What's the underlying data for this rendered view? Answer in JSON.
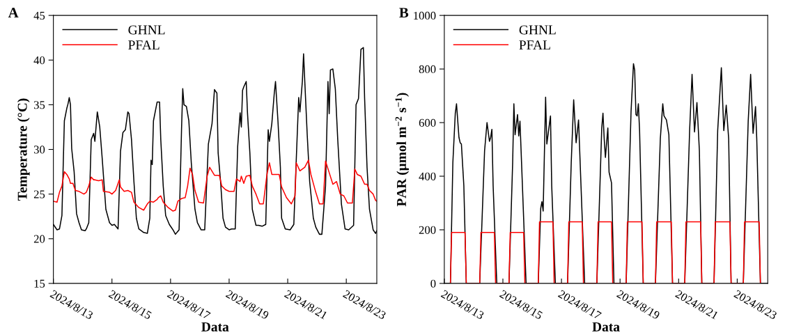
{
  "chart_data": [
    {
      "type": "line",
      "title": "A",
      "xlabel": "Data",
      "ylabel": "Temperature (°C)",
      "legend": "top left",
      "xlim": [
        "2024-08-13T00:00",
        "2024-08-24T01:00"
      ],
      "xticks": [
        {
          "value": "2024-08-13",
          "label": "2024/8/13"
        },
        {
          "value": "2024-08-15",
          "label": "2024/8/15"
        },
        {
          "value": "2024-08-17",
          "label": "2024/8/17"
        },
        {
          "value": "2024-08-19",
          "label": "2024/8/19"
        },
        {
          "value": "2024-08-21",
          "label": "2024/8/21"
        },
        {
          "value": "2024-08-23",
          "label": "2024/8/23"
        }
      ],
      "ylim": [
        15,
        45
      ],
      "yticks": [
        15,
        20,
        25,
        30,
        35,
        40,
        45
      ],
      "series": [
        {
          "name": "GHNL",
          "color": "#000000",
          "x": [
            "2024-08-13T00:00",
            "2024-08-13T03:00",
            "2024-08-13T05:00",
            "2024-08-13T07:00",
            "2024-08-13T09:00",
            "2024-08-13T11:00",
            "2024-08-13T12:00",
            "2024-08-13T13:00",
            "2024-08-13T14:00",
            "2024-08-13T15:00",
            "2024-08-13T17:00",
            "2024-08-13T19:00",
            "2024-08-13T21:00",
            "2024-08-13T23:00",
            "2024-08-14T02:00",
            "2024-08-14T03:00",
            "2024-08-14T05:00",
            "2024-08-14T07:00",
            "2024-08-14T09:00",
            "2024-08-14T10:00",
            "2024-08-14T12:00",
            "2024-08-14T14:00",
            "2024-08-14T16:00",
            "2024-08-14T19:00",
            "2024-08-14T22:00",
            "2024-08-15T00:00",
            "2024-08-15T02:00",
            "2024-08-15T05:00",
            "2024-08-15T07:00",
            "2024-08-15T09:00",
            "2024-08-15T11:00",
            "2024-08-15T13:00",
            "2024-08-15T14:00",
            "2024-08-15T16:00",
            "2024-08-15T18:00",
            "2024-08-15T20:00",
            "2024-08-15T22:00",
            "2024-08-16T02:00",
            "2024-08-16T05:00",
            "2024-08-16T07:00",
            "2024-08-16T08:00",
            "2024-08-16T09:00",
            "2024-08-16T10:00",
            "2024-08-16T13:00",
            "2024-08-16T15:00",
            "2024-08-16T16:00",
            "2024-08-16T18:00",
            "2024-08-16T20:00",
            "2024-08-16T23:00",
            "2024-08-17T02:00",
            "2024-08-17T04:00",
            "2024-08-17T07:00",
            "2024-08-17T09:00",
            "2024-08-17T10:00",
            "2024-08-17T11:00",
            "2024-08-17T13:00",
            "2024-08-17T15:00",
            "2024-08-17T17:00",
            "2024-08-17T20:00",
            "2024-08-17T22:00",
            "2024-08-18T01:00",
            "2024-08-18T04:00",
            "2024-08-18T07:00",
            "2024-08-18T10:00",
            "2024-08-18T12:00",
            "2024-08-18T14:00",
            "2024-08-18T15:00",
            "2024-08-18T17:00",
            "2024-08-18T19:00",
            "2024-08-18T21:00",
            "2024-08-19T00:00",
            "2024-08-19T02:00",
            "2024-08-19T05:00",
            "2024-08-19T07:00",
            "2024-08-19T09:00",
            "2024-08-19T10:00",
            "2024-08-19T11:00",
            "2024-08-19T12:00",
            "2024-08-19T14:00",
            "2024-08-19T15:00",
            "2024-08-19T17:00",
            "2024-08-19T19:00",
            "2024-08-19T22:00",
            "2024-08-20T00:00",
            "2024-08-20T03:00",
            "2024-08-20T06:00",
            "2024-08-20T08:00",
            "2024-08-20T09:00",
            "2024-08-20T11:00",
            "2024-08-20T13:00",
            "2024-08-20T14:00",
            "2024-08-20T16:00",
            "2024-08-20T18:00",
            "2024-08-20T19:00",
            "2024-08-20T22:00",
            "2024-08-21T02:00",
            "2024-08-21T05:00",
            "2024-08-21T07:00",
            "2024-08-21T09:00",
            "2024-08-21T10:00",
            "2024-08-21T12:00",
            "2024-08-21T13:00",
            "2024-08-21T14:00",
            "2024-08-21T16:00",
            "2024-08-21T18:00",
            "2024-08-21T21:00",
            "2024-08-21T23:00",
            "2024-08-22T02:00",
            "2024-08-22T04:00",
            "2024-08-22T07:00",
            "2024-08-22T09:00",
            "2024-08-22T10:00",
            "2024-08-22T11:00",
            "2024-08-22T13:00",
            "2024-08-22T15:00",
            "2024-08-22T17:00",
            "2024-08-22T20:00",
            "2024-08-22T23:00",
            "2024-08-23T02:00",
            "2024-08-23T06:00",
            "2024-08-23T08:00",
            "2024-08-23T10:00",
            "2024-08-23T12:00",
            "2024-08-23T14:00",
            "2024-08-23T15:00",
            "2024-08-23T17:00",
            "2024-08-23T19:00",
            "2024-08-23T22:00",
            "2024-08-24T00:00",
            "2024-08-24T01:00"
          ],
          "values": [
            21.6,
            21.0,
            21.1,
            22.6,
            33.2,
            34.6,
            35.1,
            35.8,
            35.0,
            30.1,
            27.5,
            22.8,
            21.8,
            21.0,
            20.9,
            21.1,
            21.8,
            31.1,
            31.8,
            30.9,
            34.2,
            32.5,
            29.0,
            23.3,
            21.8,
            21.5,
            21.6,
            21.1,
            29.8,
            31.9,
            32.2,
            34.2,
            34.0,
            31.1,
            26.4,
            22.3,
            21.1,
            20.7,
            20.6,
            22.3,
            28.8,
            28.3,
            33.2,
            35.3,
            35.3,
            31.1,
            25.9,
            22.6,
            21.6,
            21.0,
            20.5,
            21.0,
            32.2,
            36.8,
            35.0,
            34.8,
            33.2,
            28.5,
            23.3,
            21.8,
            21.0,
            21.0,
            30.6,
            32.9,
            36.7,
            36.3,
            29.6,
            26.4,
            22.3,
            21.3,
            21.0,
            21.1,
            21.1,
            30.3,
            34.1,
            32.5,
            36.6,
            37.0,
            37.6,
            34.2,
            29.6,
            23.3,
            21.5,
            21.5,
            21.4,
            21.6,
            32.2,
            30.9,
            32.9,
            36.3,
            37.6,
            33.2,
            28.0,
            22.3,
            21.1,
            21.0,
            21.6,
            28.8,
            35.8,
            34.2,
            37.6,
            40.7,
            37.6,
            31.6,
            26.4,
            22.3,
            21.3,
            20.5,
            20.5,
            25.9,
            37.6,
            34.0,
            38.9,
            39.0,
            36.8,
            31.1,
            23.9,
            21.1,
            21.0,
            21.5,
            35.0,
            35.7,
            41.2,
            41.4,
            35.8,
            28.0,
            23.3,
            21.0,
            20.6,
            20.9
          ]
        },
        {
          "name": "PFAL",
          "color": "#ff0000",
          "x": [
            "2024-08-13T00:00",
            "2024-08-13T03:00",
            "2024-08-13T05:00",
            "2024-08-13T07:00",
            "2024-08-13T09:00",
            "2024-08-13T11:00",
            "2024-08-13T13:00",
            "2024-08-13T14:00",
            "2024-08-13T16:00",
            "2024-08-13T18:00",
            "2024-08-13T21:00",
            "2024-08-14T01:00",
            "2024-08-14T03:00",
            "2024-08-14T05:00",
            "2024-08-14T07:00",
            "2024-08-14T09:00",
            "2024-08-14T10:00",
            "2024-08-14T13:00",
            "2024-08-14T16:00",
            "2024-08-14T17:00",
            "2024-08-14T22:00",
            "2024-08-15T00:00",
            "2024-08-15T03:00",
            "2024-08-15T06:00",
            "2024-08-15T07:00",
            "2024-08-15T10:00",
            "2024-08-15T13:00",
            "2024-08-15T16:00",
            "2024-08-15T18:00",
            "2024-08-15T22:00",
            "2024-08-16T02:00",
            "2024-08-16T05:00",
            "2024-08-16T07:00",
            "2024-08-16T10:00",
            "2024-08-16T13:00",
            "2024-08-16T14:00",
            "2024-08-16T16:00",
            "2024-08-16T18:00",
            "2024-08-16T22:00",
            "2024-08-17T02:00",
            "2024-08-17T04:00",
            "2024-08-17T06:00",
            "2024-08-17T09:00",
            "2024-08-17T12:00",
            "2024-08-17T14:00",
            "2024-08-17T16:00",
            "2024-08-17T18:00",
            "2024-08-17T20:00",
            "2024-08-17T23:00",
            "2024-08-18T03:00",
            "2024-08-18T06:00",
            "2024-08-18T08:00",
            "2024-08-18T12:00",
            "2024-08-18T16:00",
            "2024-08-18T18:00",
            "2024-08-18T21:00",
            "2024-08-19T00:00",
            "2024-08-19T04:00",
            "2024-08-19T06:00",
            "2024-08-19T09:00",
            "2024-08-19T10:00",
            "2024-08-19T12:00",
            "2024-08-19T14:00",
            "2024-08-19T17:00",
            "2024-08-19T19:00",
            "2024-08-19T22:00",
            "2024-08-20T01:00",
            "2024-08-20T04:00",
            "2024-08-20T07:00",
            "2024-08-20T09:00",
            "2024-08-20T11:00",
            "2024-08-20T17:00",
            "2024-08-20T19:00",
            "2024-08-20T23:00",
            "2024-08-21T03:00",
            "2024-08-21T06:00",
            "2024-08-21T07:00",
            "2024-08-21T10:00",
            "2024-08-21T14:00",
            "2024-08-21T17:00",
            "2024-08-21T19:00",
            "2024-08-21T23:00",
            "2024-08-22T02:00",
            "2024-08-22T05:00",
            "2024-08-22T07:00",
            "2024-08-22T10:00",
            "2024-08-22T13:00",
            "2024-08-22T16:00",
            "2024-08-22T19:00",
            "2024-08-22T22:00",
            "2024-08-23T01:00",
            "2024-08-23T05:00",
            "2024-08-23T07:00",
            "2024-08-23T09:00",
            "2024-08-23T12:00",
            "2024-08-23T15:00",
            "2024-08-23T17:00",
            "2024-08-23T19:00",
            "2024-08-23T22:00",
            "2024-08-24T00:00",
            "2024-08-24T01:00"
          ],
          "values": [
            24.2,
            24.1,
            25.2,
            25.9,
            27.5,
            27.2,
            26.7,
            26.2,
            26.2,
            25.4,
            25.3,
            25.0,
            25.2,
            25.9,
            26.9,
            26.6,
            26.6,
            26.5,
            26.6,
            25.3,
            25.2,
            25.0,
            25.4,
            26.6,
            25.8,
            25.3,
            25.4,
            25.2,
            24.1,
            23.5,
            23.2,
            23.9,
            24.2,
            24.1,
            24.4,
            24.6,
            24.8,
            24.1,
            23.5,
            23.1,
            23.2,
            24.2,
            24.5,
            24.6,
            25.9,
            27.9,
            27.2,
            25.4,
            24.1,
            24.0,
            27.0,
            28.0,
            27.1,
            27.1,
            25.9,
            25.5,
            25.3,
            25.3,
            26.7,
            26.4,
            27.0,
            26.2,
            27.0,
            27.1,
            25.9,
            25.0,
            23.9,
            23.9,
            27.2,
            28.5,
            27.2,
            27.2,
            25.8,
            24.6,
            23.9,
            24.8,
            28.5,
            27.6,
            28.0,
            28.8,
            27.2,
            25.2,
            23.9,
            23.9,
            28.7,
            27.4,
            26.1,
            26.4,
            25.0,
            24.8,
            24.0,
            24.0,
            27.8,
            27.2,
            27.0,
            26.1,
            26.1,
            25.4,
            25.0,
            24.3,
            24.2
          ]
        }
      ]
    },
    {
      "type": "line",
      "title": "B",
      "xlabel": "Data",
      "ylabel": "PAR (μmol m$^{−2}$ s$^{−1}$)",
      "legend": "top left",
      "xlim": [
        "2024-08-13T00:00",
        "2024-08-24T01:00"
      ],
      "xticks": [
        {
          "value": "2024-08-13",
          "label": "2024/8/13"
        },
        {
          "value": "2024-08-15",
          "label": "2024/8/15"
        },
        {
          "value": "2024-08-17",
          "label": "2024/8/17"
        },
        {
          "value": "2024-08-19",
          "label": "2024/8/19"
        },
        {
          "value": "2024-08-21",
          "label": "2024/8/21"
        },
        {
          "value": "2024-08-23",
          "label": "2024/8/23"
        }
      ],
      "ylim": [
        0,
        1000
      ],
      "yticks": [
        0,
        200,
        400,
        600,
        800,
        1000
      ],
      "series": [
        {
          "name": "GHNL",
          "color": "#000000",
          "x": [
            "2024-08-13T00:00",
            "2024-08-13T05:00",
            "2024-08-13T07:00",
            "2024-08-13T09:00",
            "2024-08-13T10:00",
            "2024-08-13T12:00",
            "2024-08-13T13:00",
            "2024-08-13T14:00",
            "2024-08-13T16:00",
            "2024-08-13T18:00",
            "2024-08-14T05:00",
            "2024-08-14T09:00",
            "2024-08-14T11:00",
            "2024-08-14T13:00",
            "2024-08-14T14:00",
            "2024-08-14T15:00",
            "2024-08-14T16:00",
            "2024-08-14T19:00",
            "2024-08-15T05:00",
            "2024-08-15T08:00",
            "2024-08-15T09:00",
            "2024-08-15T10:00",
            "2024-08-15T12:00",
            "2024-08-15T13:00",
            "2024-08-15T14:00",
            "2024-08-15T16:00",
            "2024-08-15T19:00",
            "2024-08-16T05:00",
            "2024-08-16T07:00",
            "2024-08-16T08:00",
            "2024-08-16T09:00",
            "2024-08-16T11:00",
            "2024-08-16T12:00",
            "2024-08-16T15:00",
            "2024-08-16T16:00",
            "2024-08-16T19:00",
            "2024-08-17T05:00",
            "2024-08-17T08:00",
            "2024-08-17T10:00",
            "2024-08-17T12:00",
            "2024-08-17T14:00",
            "2024-08-17T16:00",
            "2024-08-17T19:00",
            "2024-08-18T05:00",
            "2024-08-18T09:00",
            "2024-08-18T10:00",
            "2024-08-18T11:00",
            "2024-08-18T12:00",
            "2024-08-18T14:00",
            "2024-08-18T15:00",
            "2024-08-18T17:00",
            "2024-08-18T19:00",
            "2024-08-19T05:00",
            "2024-08-19T09:00",
            "2024-08-19T11:00",
            "2024-08-19T12:00",
            "2024-08-19T13:00",
            "2024-08-19T14:00",
            "2024-08-19T15:00",
            "2024-08-19T16:00",
            "2024-08-19T19:00",
            "2024-08-20T05:00",
            "2024-08-20T09:00",
            "2024-08-20T11:00",
            "2024-08-20T12:00",
            "2024-08-20T14:00",
            "2024-08-20T16:00",
            "2024-08-20T19:00",
            "2024-08-21T05:00",
            "2024-08-21T09:00",
            "2024-08-21T11:00",
            "2024-08-21T13:00",
            "2024-08-21T15:00",
            "2024-08-21T17:00",
            "2024-08-21T19:00",
            "2024-08-22T05:00",
            "2024-08-22T08:00",
            "2024-08-22T11:00",
            "2024-08-22T13:00",
            "2024-08-22T15:00",
            "2024-08-22T17:00",
            "2024-08-22T19:00",
            "2024-08-23T05:00",
            "2024-08-23T09:00",
            "2024-08-23T11:00",
            "2024-08-23T13:00",
            "2024-08-23T15:00",
            "2024-08-23T16:00",
            "2024-08-23T19:00",
            "2024-08-24T01:00"
          ],
          "values": [
            0,
            0,
            450,
            635,
            670,
            545,
            525,
            520,
            365,
            0,
            0,
            495,
            600,
            530,
            545,
            575,
            365,
            0,
            0,
            450,
            670,
            555,
            630,
            550,
            605,
            365,
            0,
            0,
            280,
            305,
            270,
            695,
            520,
            625,
            365,
            0,
            0,
            450,
            685,
            525,
            610,
            365,
            0,
            0,
            580,
            635,
            540,
            470,
            580,
            415,
            375,
            0,
            0,
            640,
            820,
            795,
            630,
            625,
            670,
            570,
            0,
            0,
            540,
            670,
            625,
            610,
            555,
            0,
            0,
            570,
            780,
            565,
            675,
            495,
            0,
            0,
            570,
            805,
            570,
            665,
            540,
            0,
            0,
            605,
            780,
            560,
            660,
            540,
            0,
            0
          ]
        },
        {
          "name": "PFAL",
          "color": "#ff0000",
          "x": [
            "2024-08-13T05:00",
            "2024-08-13T06:00",
            "2024-08-13T17:00",
            "2024-08-13T18:00",
            "2024-08-14T05:00",
            "2024-08-14T06:00",
            "2024-08-14T17:00",
            "2024-08-14T18:00",
            "2024-08-15T05:00",
            "2024-08-15T06:00",
            "2024-08-15T17:00",
            "2024-08-15T18:00",
            "2024-08-16T05:00",
            "2024-08-16T06:00",
            "2024-08-16T17:00",
            "2024-08-16T18:00",
            "2024-08-17T05:00",
            "2024-08-17T06:00",
            "2024-08-17T17:00",
            "2024-08-17T18:00",
            "2024-08-18T05:00",
            "2024-08-18T06:00",
            "2024-08-18T17:00",
            "2024-08-18T18:00",
            "2024-08-19T05:00",
            "2024-08-19T06:00",
            "2024-08-19T18:00",
            "2024-08-19T19:00",
            "2024-08-20T05:00",
            "2024-08-20T06:00",
            "2024-08-20T18:00",
            "2024-08-20T19:00",
            "2024-08-21T05:00",
            "2024-08-21T06:00",
            "2024-08-21T18:00",
            "2024-08-21T19:00",
            "2024-08-22T05:00",
            "2024-08-22T06:00",
            "2024-08-22T18:00",
            "2024-08-22T19:00",
            "2024-08-23T05:00",
            "2024-08-23T06:00",
            "2024-08-23T18:00",
            "2024-08-23T19:00"
          ],
          "values": [
            0,
            190,
            190,
            0,
            0,
            190,
            190,
            0,
            0,
            190,
            190,
            0,
            0,
            230,
            230,
            0,
            0,
            230,
            230,
            0,
            0,
            230,
            230,
            0,
            0,
            230,
            230,
            0,
            0,
            230,
            230,
            0,
            0,
            230,
            230,
            0,
            0,
            230,
            230,
            0,
            0,
            230,
            230,
            0
          ]
        }
      ]
    }
  ]
}
